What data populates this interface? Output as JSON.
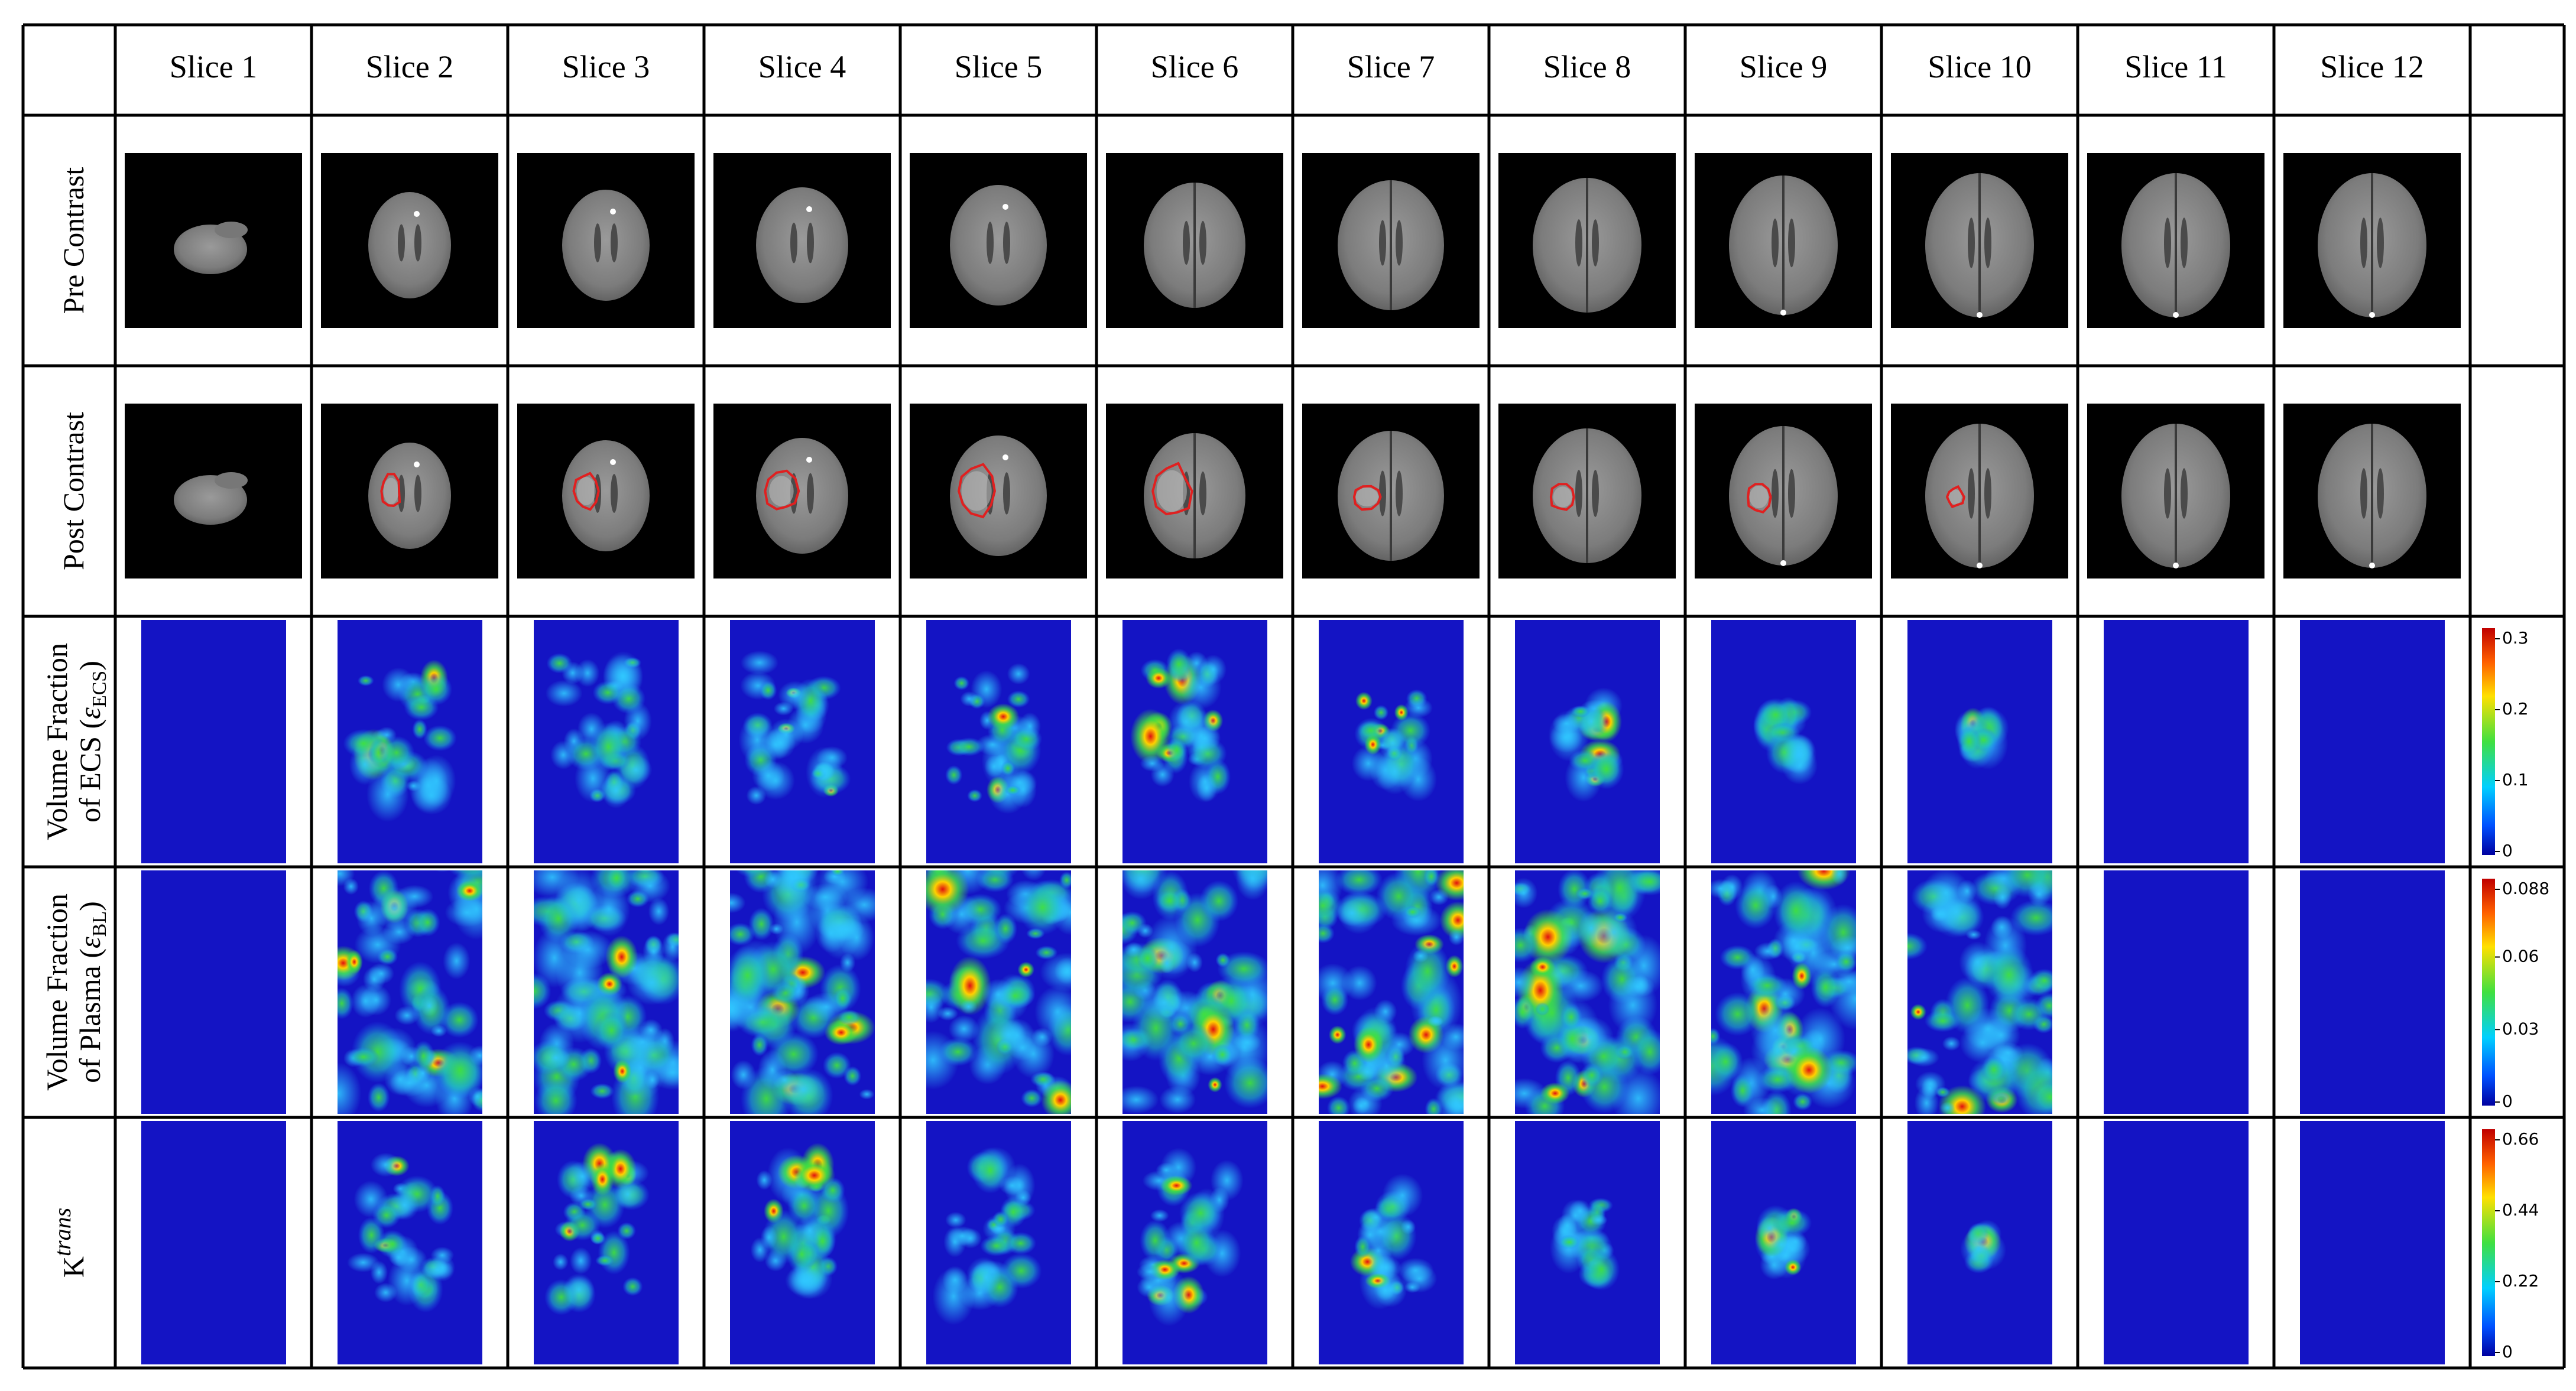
{
  "header": {
    "columns": [
      "Slice 1",
      "Slice 2",
      "Slice 3",
      "Slice 4",
      "Slice 5",
      "Slice 6",
      "Slice 7",
      "Slice 8",
      "Slice 9",
      "Slice 10",
      "Slice 11",
      "Slice 12"
    ]
  },
  "rows": [
    {
      "label": {
        "lines": [
          "Pre Contrast"
        ]
      }
    },
    {
      "label": {
        "lines": [
          "Post Contrast"
        ]
      }
    },
    {
      "label": {
        "lines": [
          "Volume Fraction"
        ],
        "last": {
          "text": "of ECS (",
          "symbol": "ε",
          "subscript": "ECS",
          "close": ")"
        }
      },
      "colorbar": {
        "ticks": [
          0.3,
          0.2,
          0.1,
          0
        ]
      }
    },
    {
      "label": {
        "lines": [
          "Volume Fraction"
        ],
        "last": {
          "text": "of Plasma (",
          "symbol": "ε",
          "subscript": "BL",
          "close": ")"
        }
      },
      "colorbar": {
        "ticks": [
          0.088,
          0.06,
          0.03,
          0
        ]
      }
    },
    {
      "label": {
        "base": "K",
        "superscript": "trans"
      },
      "colorbar": {
        "ticks": [
          0.66,
          0.44,
          0.22,
          0
        ]
      }
    }
  ]
}
